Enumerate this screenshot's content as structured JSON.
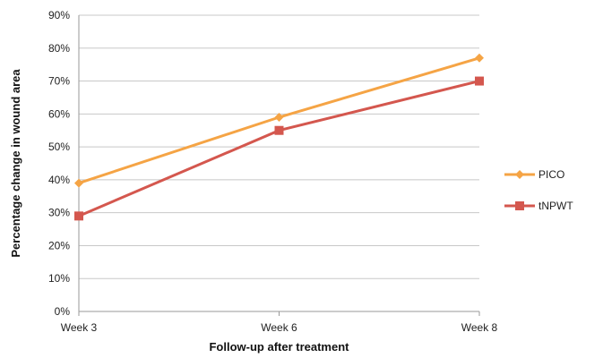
{
  "chart_data": {
    "type": "line",
    "categories": [
      "Week 3",
      "Week 6",
      "Week 8"
    ],
    "series": [
      {
        "name": "PICO",
        "values": [
          39,
          59,
          77
        ],
        "color": "#F5A445",
        "marker": "diamond"
      },
      {
        "name": "tNPWT",
        "values": [
          29,
          55,
          70
        ],
        "color": "#D4574E",
        "marker": "square"
      }
    ],
    "xlabel": "Follow-up after treatment",
    "ylabel": "Percentage change in wound area",
    "ylim": [
      0,
      90
    ],
    "yticks": [
      "0%",
      "10%",
      "20%",
      "30%",
      "40%",
      "50%",
      "60%",
      "70%",
      "80%",
      "90%"
    ],
    "grid": true,
    "legend_position": "right"
  }
}
